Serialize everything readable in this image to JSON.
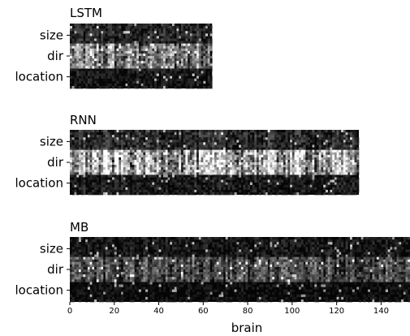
{
  "chart_data": {
    "type": "heatmap",
    "colormap": "gray",
    "row_labels": [
      "size",
      "dir",
      "location"
    ],
    "panels": [
      {
        "title": "LSTM",
        "columns": 64,
        "band_means": [
          0.18,
          0.58,
          0.1
        ]
      },
      {
        "title": "RNN",
        "columns": 130,
        "band_means": [
          0.2,
          0.8,
          0.12
        ]
      },
      {
        "title": "MB",
        "columns": 153,
        "band_means": [
          0.1,
          0.35,
          0.05
        ]
      }
    ],
    "x_axis": {
      "label": "brain",
      "ticks": [
        "0",
        "20",
        "40",
        "60",
        "80",
        "100",
        "120",
        "140"
      ],
      "range": [
        0,
        153
      ]
    }
  }
}
